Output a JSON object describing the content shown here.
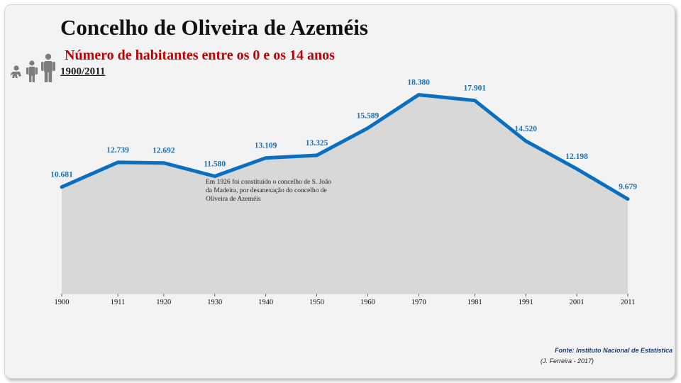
{
  "header": {
    "title": "Concelho de Oliveira de Azeméis",
    "subtitle": "Número de habitantes entre os 0 e os 14 anos",
    "period": "1900/2011"
  },
  "icons": [
    "baby-icon",
    "child-icon",
    "adult-icon"
  ],
  "annotation": "Em 1926 foi constituído o concelho de S. João da Madeira, por desanexação do concelho de Oliveira de Azeméis",
  "footer": {
    "source": "Fonte: Instituto Nacional de Estatística",
    "author": "(J. Ferreira - 2017)"
  },
  "colors": {
    "line": "#0b6fc1",
    "label": "#1a6fb5",
    "area": "#d8d8d8",
    "subtitle": "#c00000",
    "icons": "#7d7d7d"
  },
  "chart_data": {
    "type": "area",
    "categories": [
      "1900",
      "1911",
      "1920",
      "1930",
      "1940",
      "1950",
      "1960",
      "1970",
      "1981",
      "1991",
      "2001",
      "2011"
    ],
    "values": [
      10681,
      12739,
      12692,
      11580,
      13109,
      13325,
      15589,
      18380,
      17901,
      14520,
      12198,
      9679
    ],
    "value_labels": [
      "10.681",
      "12.739",
      "12.692",
      "11.580",
      "13.109",
      "13.325",
      "15.589",
      "18.380",
      "17.901",
      "14.520",
      "12.198",
      "9.679"
    ],
    "grid": false,
    "legend": "none"
  }
}
